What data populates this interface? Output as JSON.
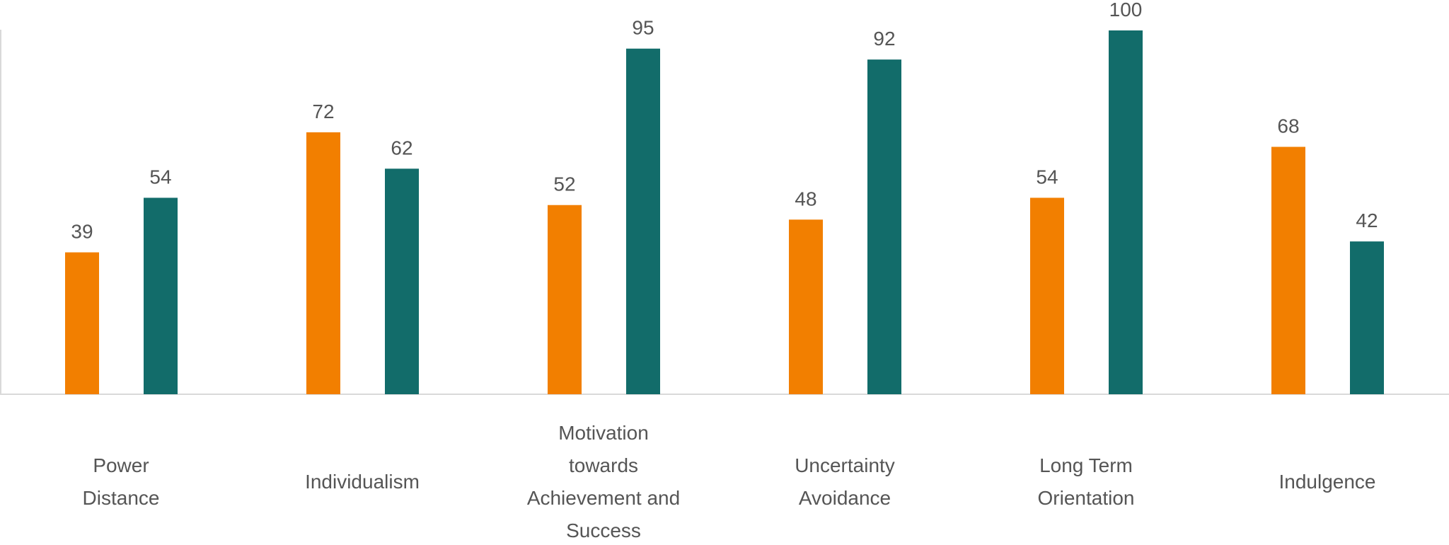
{
  "chart_data": {
    "type": "bar",
    "categories": [
      [
        "Power",
        "Distance"
      ],
      [
        "Individualism"
      ],
      [
        "Motivation",
        "towards",
        "Achievement and",
        "Success"
      ],
      [
        "Uncertainty",
        "Avoidance"
      ],
      [
        "Long Term",
        "Orientation"
      ],
      [
        "Indulgence"
      ]
    ],
    "series": [
      {
        "values": [
          39,
          72,
          52,
          48,
          54,
          68
        ],
        "color": "#F27F00"
      },
      {
        "values": [
          54,
          62,
          95,
          92,
          100,
          42
        ],
        "color": "#126C6A"
      }
    ],
    "ylim": [
      0,
      100
    ],
    "grid": false,
    "legend": "none",
    "data_labels": true
  }
}
